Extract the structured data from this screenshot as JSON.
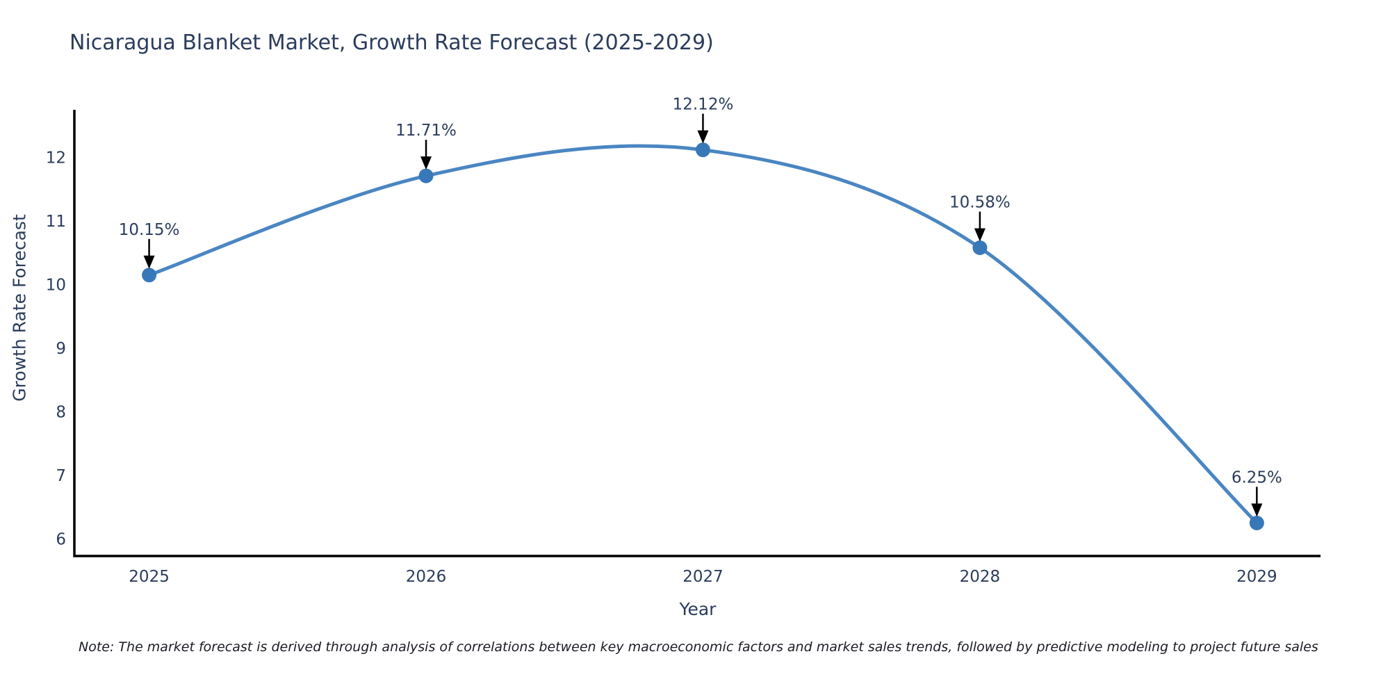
{
  "note": "Note: The market forecast is derived through analysis of correlations between key macroeconomic factors and market sales trends, followed by predictive modeling to project future sales",
  "chart_data": {
    "type": "line",
    "title": "Nicaragua Blanket Market, Growth Rate Forecast (2025-2029)",
    "xlabel": "Year",
    "ylabel": "Growth Rate Forecast",
    "x": [
      2025,
      2026,
      2027,
      2028,
      2029
    ],
    "series": [
      {
        "name": "Growth Rate Forecast",
        "values": [
          10.15,
          11.71,
          12.12,
          10.58,
          6.25
        ]
      }
    ],
    "point_labels": [
      "10.15%",
      "11.71%",
      "12.12%",
      "10.58%",
      "6.25%"
    ],
    "x_tick_labels": [
      "2025",
      "2026",
      "2027",
      "2028",
      "2029"
    ],
    "y_tick_values": [
      6,
      7,
      8,
      9,
      10,
      11,
      12
    ],
    "xlim": [
      2024.73,
      2029.23
    ],
    "ylim": [
      5.73,
      12.75
    ],
    "grid": false,
    "legend": "none",
    "line_shape": "smooth",
    "annotation_style": "label-above-with-down-arrow",
    "colors": {
      "line": "#4a86c2",
      "marker": "#3878b8",
      "axis": "#000000",
      "tick_text": "#2b3c5c",
      "annotation_text": "#2b3c5c",
      "arrow": "#000000"
    }
  }
}
